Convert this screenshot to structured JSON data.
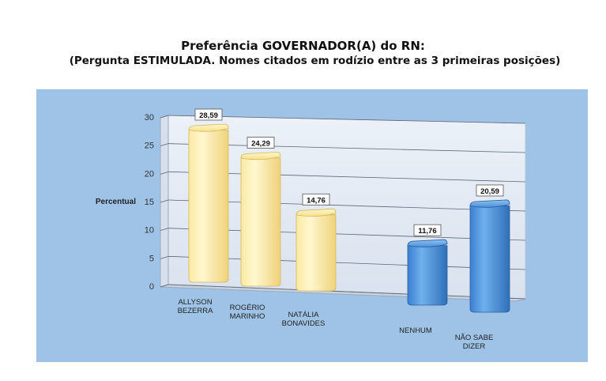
{
  "title": "Preferência GOVERNADOR(A) do RN:",
  "subtitle": "(Pergunta ESTIMULADA. Nomes citados em rodízio entre as 3 primeiras posições)",
  "chart_data": {
    "type": "bar",
    "title": "Preferência GOVERNADOR(A) do RN:",
    "subtitle": "(Pergunta ESTIMULADA. Nomes citados em rodízio entre as 3 primeiras posições)",
    "ylabel": "Percentual",
    "xlabel": "",
    "ylim": [
      0,
      30
    ],
    "yticks": [
      "0",
      "5",
      "10",
      "15",
      "20",
      "25",
      "30"
    ],
    "categories": [
      [
        "ALLYSON",
        "BEZERRA"
      ],
      [
        "ROGÉRIO",
        "MARINHO"
      ],
      [
        "NATÁLIA",
        "BONAVIDES"
      ],
      [
        "NENHUM"
      ],
      [
        "NÃO SABE",
        "DIZER"
      ]
    ],
    "values": [
      28.59,
      24.29,
      14.76,
      11.76,
      20.59
    ],
    "value_labels": [
      "28,59",
      "24,29",
      "14,76",
      "11,76",
      "20,59"
    ],
    "bar_colors": [
      "#f7e38f",
      "#f7e38f",
      "#f7e38f",
      "#4a90d9",
      "#4a90d9"
    ],
    "grid": true,
    "legend": "none"
  }
}
